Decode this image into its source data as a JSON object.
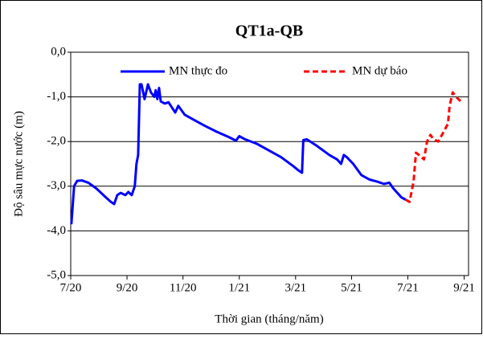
{
  "chart_data": {
    "type": "line",
    "title": "QT1a-QB",
    "xlabel": "Thời gian (tháng/năm)",
    "ylabel": "Độ sâu mực nước (m)",
    "xlim": [
      2020.5,
      2021.68
    ],
    "ylim": [
      -5,
      0
    ],
    "xticks": [
      {
        "value": 2020.5,
        "label": "7/20"
      },
      {
        "value": 2020.667,
        "label": "9/20"
      },
      {
        "value": 2020.833,
        "label": "11/20"
      },
      {
        "value": 2021.0,
        "label": "1/21"
      },
      {
        "value": 2021.167,
        "label": "3/21"
      },
      {
        "value": 2021.333,
        "label": "5/21"
      },
      {
        "value": 2021.5,
        "label": "7/21"
      },
      {
        "value": 2021.667,
        "label": "9/21"
      }
    ],
    "yticks": [
      {
        "value": 0,
        "label": "0,0"
      },
      {
        "value": -1,
        "label": "-1,0"
      },
      {
        "value": -2,
        "label": "-2,0"
      },
      {
        "value": -3,
        "label": "-3,0"
      },
      {
        "value": -4,
        "label": "-4,0"
      },
      {
        "value": -5,
        "label": "-5,0"
      }
    ],
    "grid": true,
    "legend": "top",
    "series": [
      {
        "name": "MN thực đo",
        "color": "#0000ff",
        "dash": false,
        "x": [
          2020.502,
          2020.51,
          2020.519,
          2020.533,
          2020.552,
          2020.576,
          2020.6,
          2020.619,
          2020.629,
          2020.638,
          2020.648,
          2020.662,
          2020.671,
          2020.681,
          2020.69,
          2020.695,
          2020.7,
          2020.705,
          2020.71,
          2020.719,
          2020.729,
          2020.738,
          2020.748,
          2020.752,
          2020.757,
          2020.762,
          2020.767,
          2020.779,
          2020.79,
          2020.81,
          2020.819,
          2020.838,
          2020.862,
          2020.898,
          2020.933,
          2020.969,
          2020.99,
          2021.0,
          2021.017,
          2021.052,
          2021.088,
          2021.124,
          2021.16,
          2021.176,
          2021.186,
          2021.19,
          2021.2,
          2021.231,
          2021.267,
          2021.29,
          2021.302,
          2021.31,
          2021.319,
          2021.338,
          2021.362,
          2021.386,
          2021.41,
          2021.429,
          2021.445,
          2021.457,
          2021.481,
          2021.493
        ],
        "values": [
          -3.85,
          -3.0,
          -2.88,
          -2.87,
          -2.92,
          -3.05,
          -3.22,
          -3.35,
          -3.4,
          -3.2,
          -3.15,
          -3.2,
          -3.13,
          -3.2,
          -3.0,
          -2.5,
          -2.3,
          -0.72,
          -0.72,
          -1.05,
          -0.72,
          -0.9,
          -1.0,
          -0.85,
          -1.05,
          -0.8,
          -1.1,
          -1.15,
          -1.12,
          -1.35,
          -1.2,
          -1.4,
          -1.5,
          -1.65,
          -1.78,
          -1.9,
          -1.98,
          -1.88,
          -1.95,
          -2.05,
          -2.2,
          -2.35,
          -2.55,
          -2.65,
          -2.7,
          -1.97,
          -1.95,
          -2.1,
          -2.3,
          -2.4,
          -2.5,
          -2.3,
          -2.35,
          -2.5,
          -2.75,
          -2.85,
          -2.9,
          -2.95,
          -2.92,
          -3.05,
          -3.25,
          -3.3
        ]
      },
      {
        "name": "MN dự báo",
        "color": "#ff0000",
        "dash": true,
        "x": [
          2021.493,
          2021.505,
          2021.517,
          2021.524,
          2021.533,
          2021.548,
          2021.557,
          2021.567,
          2021.576,
          2021.59,
          2021.605,
          2021.619,
          2021.624,
          2021.633,
          2021.643,
          2021.657
        ],
        "values": [
          -3.3,
          -3.35,
          -2.9,
          -2.25,
          -2.3,
          -2.4,
          -2.0,
          -1.85,
          -1.95,
          -2.0,
          -1.8,
          -1.6,
          -1.2,
          -0.9,
          -1.0,
          -1.1
        ]
      }
    ]
  }
}
